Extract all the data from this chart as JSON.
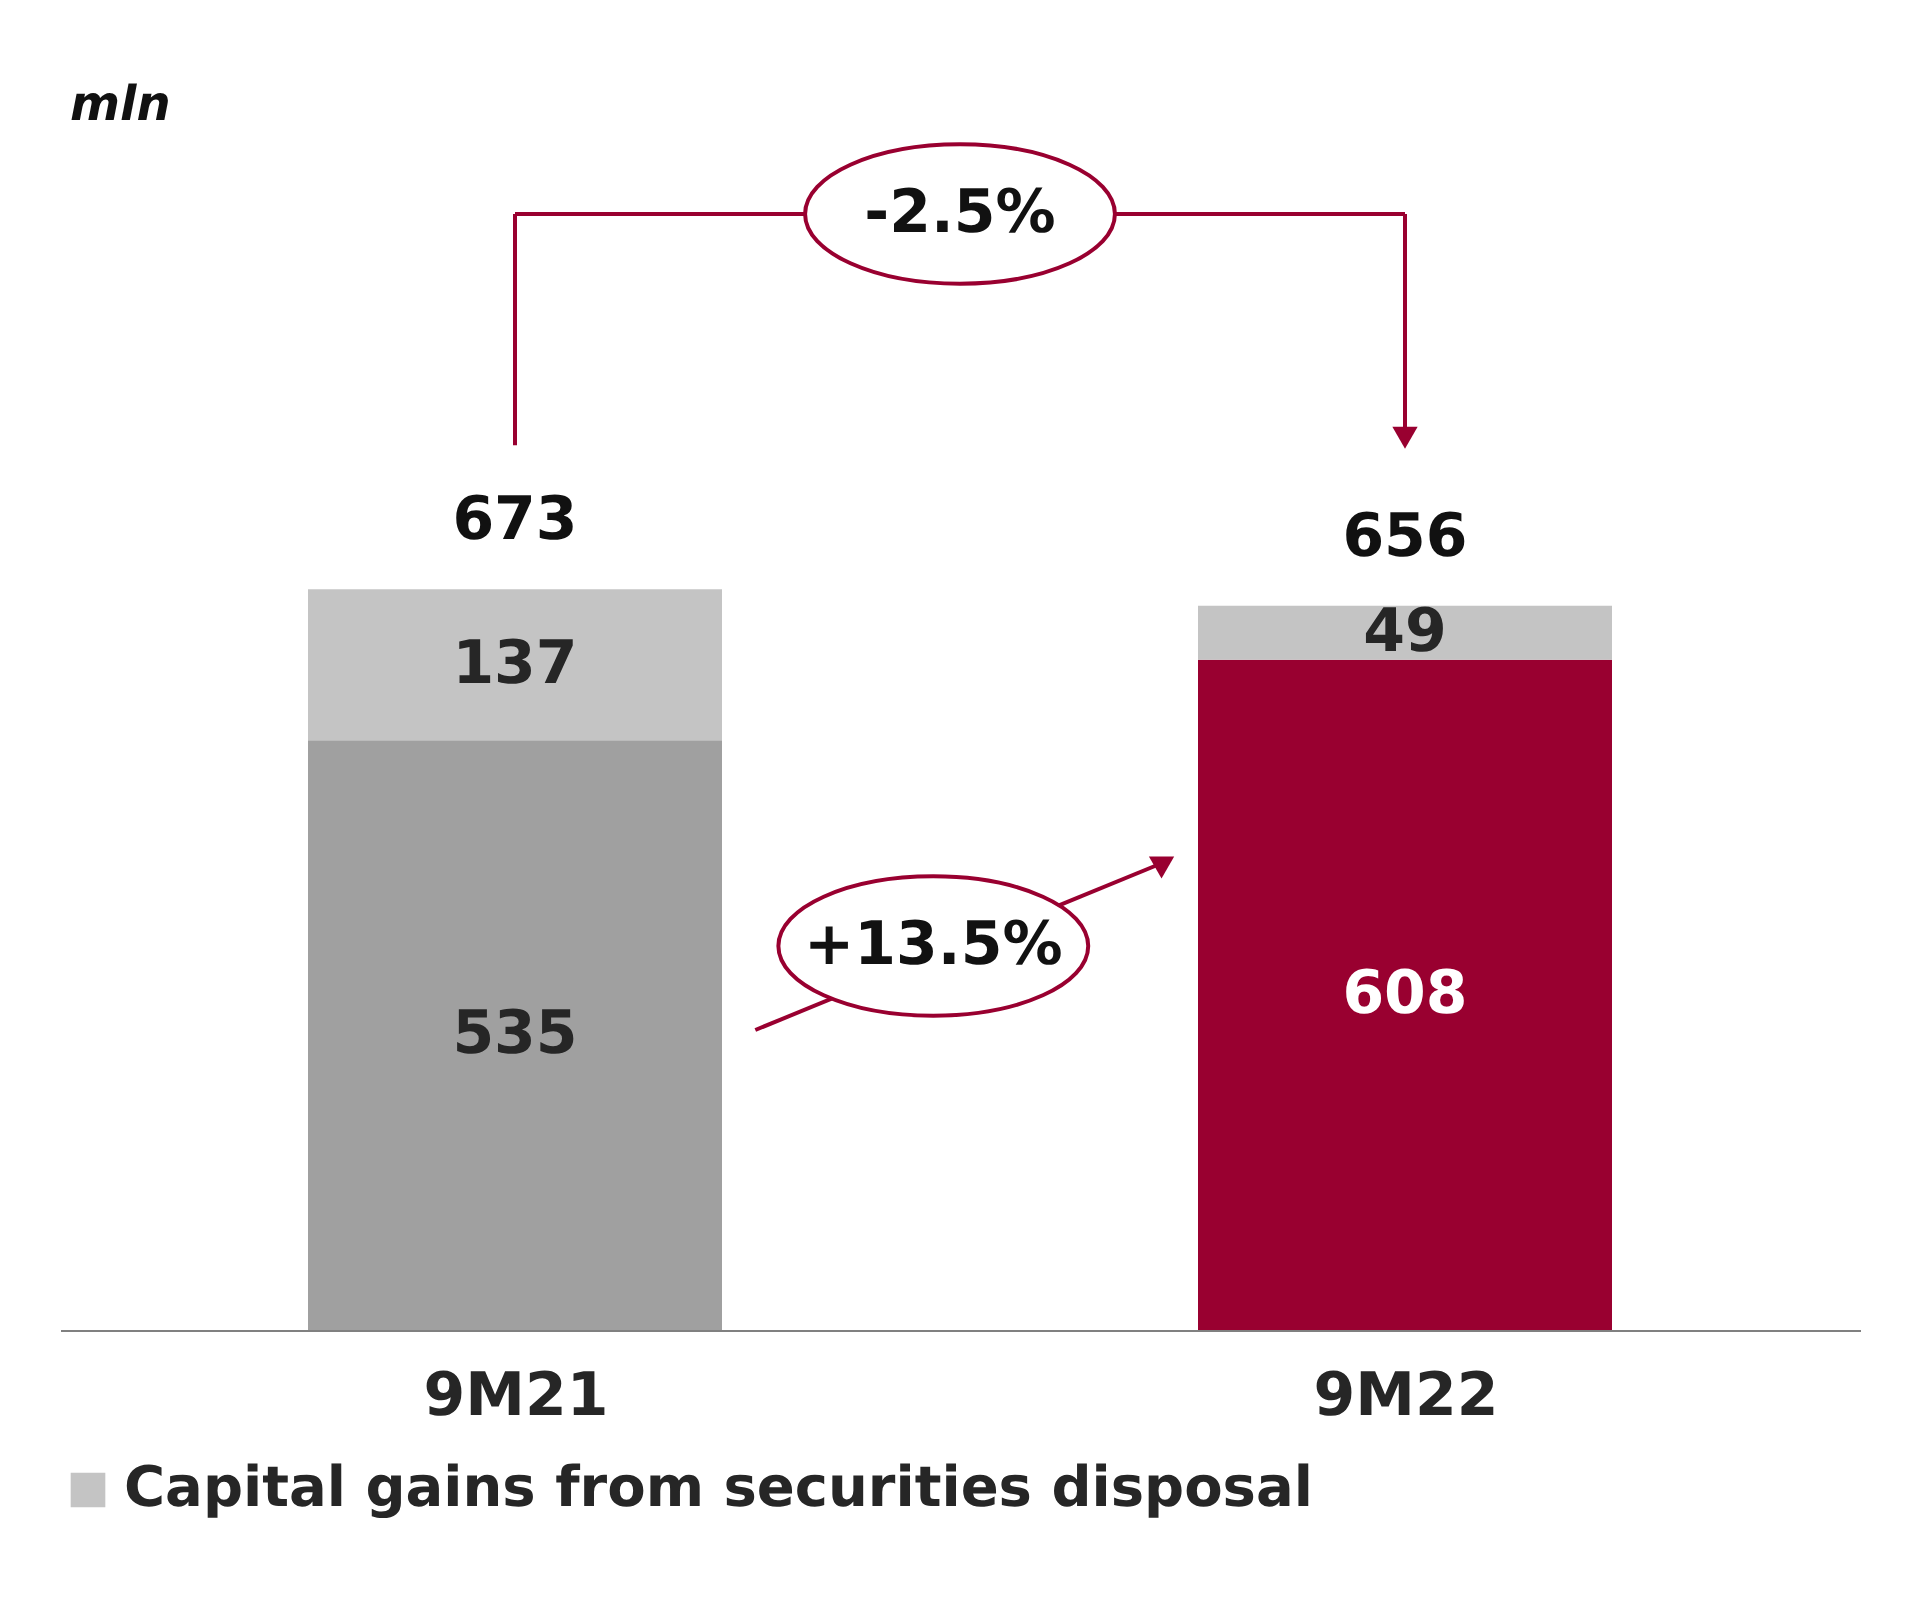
{
  "chart_data": {
    "type": "bar",
    "stacked": true,
    "categories": [
      "9M21",
      "9M22"
    ],
    "series": [
      {
        "colors": [
          "#a0a0a0",
          "#990030"
        ],
        "values": [
          535,
          608
        ]
      },
      {
        "name": "Capital gains from securities disposal",
        "color": "#c4c4c4",
        "values": [
          137,
          49
        ]
      }
    ],
    "totals": [
      "673",
      "656"
    ],
    "data_labels": true,
    "legend": "bottom",
    "annotations": [
      "mln",
      "-2.5%",
      "+13.5%"
    ]
  }
}
